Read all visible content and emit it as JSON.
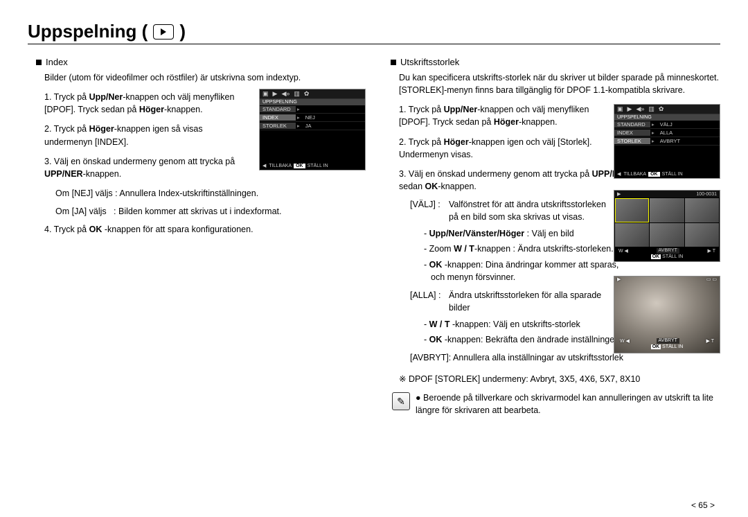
{
  "title": "Uppspelning (",
  "title_suffix": ")",
  "left": {
    "section": "Index",
    "intro": "Bilder (utom för videofilmer och röstfiler) är utskrivna som indextyp.",
    "steps": [
      "Tryck på <b>Upp/Ner</b>-knappen och välj menyfliken [DPOF]. Tryck sedan på <b>Höger</b>-knappen.",
      "Tryck på <b>Höger</b>-knappen igen så visas undermenyn [INDEX].",
      "Välj en önskad undermeny genom att trycka på <b>UPP/NER</b>-knappen."
    ],
    "opt_nej": "Om [NEJ] väljs : Annullera Index-utskriftinställningen.",
    "opt_ja": "Om [JA] väljs   : Bilden kommer att skrivas ut i indexformat.",
    "step4": "Tryck på <b>OK</b> -knappen för att spara konfigurationen.",
    "lcd": {
      "title": "UPPSPELNING",
      "rows": [
        {
          "l": "STANDARD",
          "r": ""
        },
        {
          "l": "INDEX",
          "r": "NEJ"
        },
        {
          "l": "STORLEK",
          "r": "JA"
        }
      ],
      "foot_back": "TILLBAKA",
      "foot_ok": "OK",
      "foot_set": "STÄLL IN"
    }
  },
  "right": {
    "section": "Utskriftsstorlek",
    "intro": "Du kan specificera utskrifts-storlek när du skriver ut bilder sparade på minneskortet. [STORLEK]-menyn finns bara tillgänglig för DPOF 1.1-kompatibla skrivare.",
    "steps": [
      "Tryck på <b>Upp/Ner</b>-knappen och välj menyfliken [DPOF]. Tryck sedan på <b>Höger</b>-knappen.",
      "Tryck på <b>Höger</b>-knappen igen och välj [Storlek]. Undermenyn visas.",
      "Välj en önskad undermeny genom att trycka på <b>UPP/NER</b>-knappen och sedan <b>OK</b>-knappen."
    ],
    "valj_label": "[VÄLJ] :",
    "valj_text": "Valfönstret för att ändra utskriftsstorleken på en bild som ska skrivas ut visas.",
    "dashes1": [
      "<b>Upp/Ner/Vänster/Höger</b> : Välj en bild",
      "Zoom <b>W / T</b>-knappen : Ändra utskrifts-storleken.",
      "<b>OK</b> -knappen: Dina ändringar kommer att sparas, och menyn försvinner."
    ],
    "alla_label": "[ALLA] :",
    "alla_text": "Ändra utskriftsstorleken för alla sparade bilder",
    "dashes2": [
      "<b>W / T</b> -knappen: Välj en utskrifts-storlek",
      "<b>OK</b> -knappen: Bekräfta den ändrade inställningen."
    ],
    "avbryt": "[AVBRYT]: Annullera alla inställningar av utskriftsstorlek",
    "sub_note": "※ DPOF [STORLEK] undermeny: Avbryt, 3X5, 4X6, 5X7, 8X10",
    "note_bullet": "Beroende på tillverkare och skrivarmodel kan annulleringen av utskrift ta lite längre för skrivaren att bearbeta.",
    "lcd": {
      "title": "UPPSPELNING",
      "rows": [
        {
          "l": "STANDARD",
          "r": "VÄLJ"
        },
        {
          "l": "INDEX",
          "r": "ALLA"
        },
        {
          "l": "STORLEK",
          "r": "AVBRYT"
        }
      ],
      "foot_back": "TILLBAKA",
      "foot_ok": "OK",
      "foot_set": "STÄLL IN"
    },
    "thumbs": {
      "counter": "100-0031",
      "w": "W",
      "t": "T",
      "avbryt": "AVBRYT",
      "ok": "OK",
      "set": "STÄLL IN"
    },
    "photo": {
      "w": "W",
      "t": "T",
      "avbryt": "AVBRYT",
      "ok": "OK",
      "set": "STÄLL IN"
    }
  },
  "page": "< 65 >"
}
